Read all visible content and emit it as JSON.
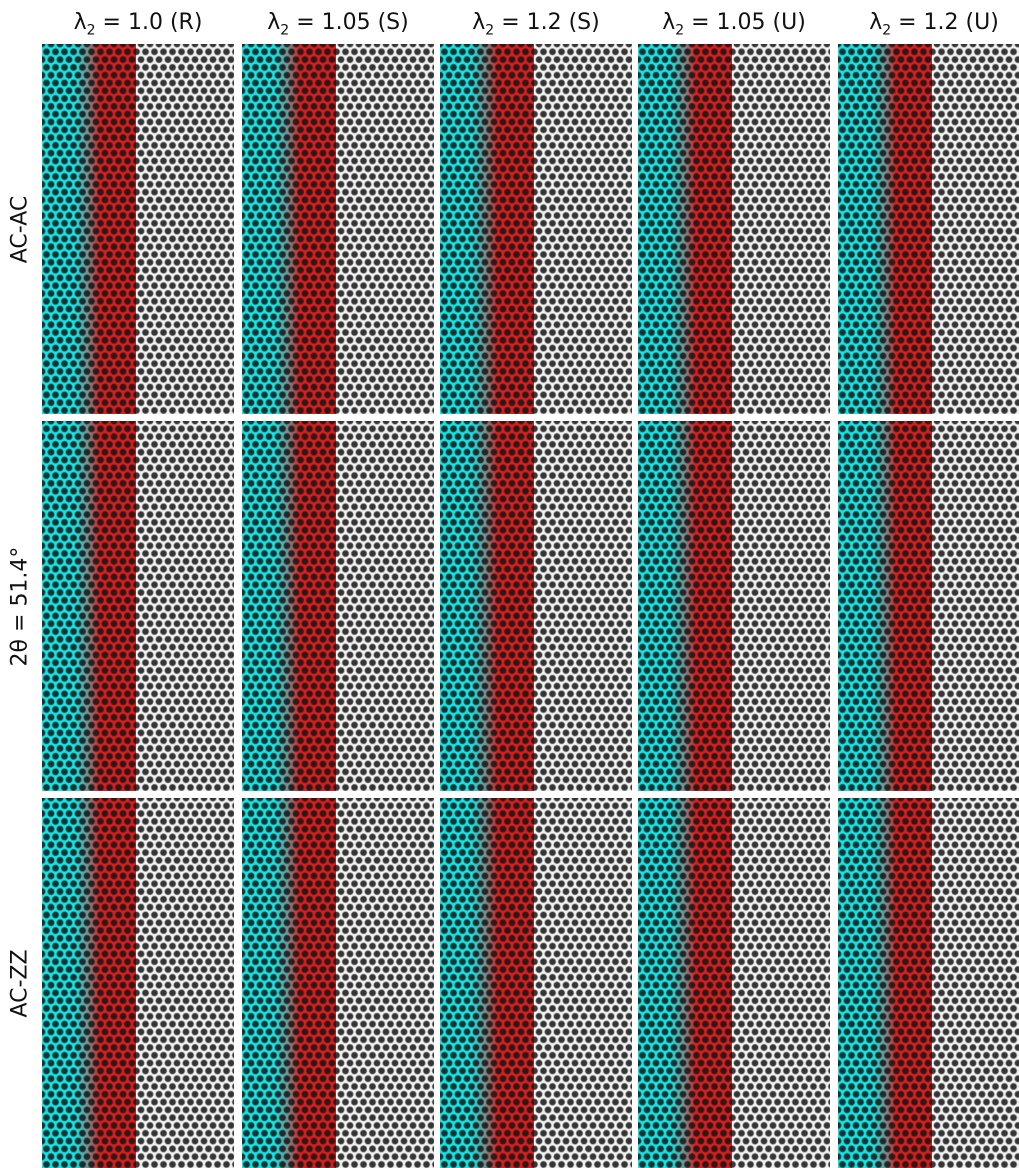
{
  "column_titles": [
    {
      "base": "λ",
      "sub": "2",
      "rest": " = 1.0 (R)"
    },
    {
      "base": "λ",
      "sub": "2",
      "rest": " = 1.05 (S)"
    },
    {
      "base": "λ",
      "sub": "2",
      "rest": " = 1.2 (S)"
    },
    {
      "base": "λ",
      "sub": "2",
      "rest": " = 1.05 (U)"
    },
    {
      "base": "λ",
      "sub": "2",
      "rest": " = 1.2 (U)"
    }
  ],
  "row_labels": [
    "AC-AC",
    "2θ = 51.4°",
    "AC-ZZ"
  ],
  "colors": {
    "cyan": "#19e3e3",
    "red": "#d42020",
    "lattice_dot": "#141414",
    "background": "#ffffff"
  }
}
